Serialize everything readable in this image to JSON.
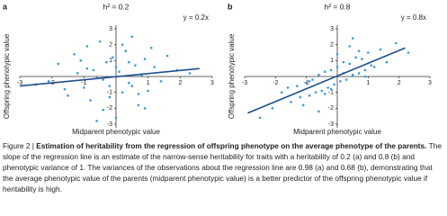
{
  "chart_data": [
    {
      "type": "scatter",
      "panel": "a",
      "title": "h² = 0.2",
      "annotation": "y = 0.2x",
      "x_label": "Midparent phenotypic value",
      "y_label": "Offspring phenotypic value",
      "xlim": [
        -3,
        3
      ],
      "ylim": [
        -3,
        3
      ],
      "xticks": [
        -3,
        -2,
        -1,
        1,
        2,
        3
      ],
      "yticks": [
        3,
        2,
        1,
        -1,
        -2,
        -3
      ],
      "color": "#3a9ad9",
      "x": [
        -2.1,
        -1.8,
        -1.5,
        -1.3,
        -1.2,
        -1.0,
        -0.9,
        -0.8,
        -0.7,
        -0.6,
        -0.5,
        -0.4,
        -0.3,
        -0.2,
        -0.1,
        0.0,
        0.1,
        0.2,
        0.3,
        0.4,
        0.5,
        0.6,
        0.7,
        0.8,
        0.9,
        1.0,
        1.2,
        1.4,
        1.6,
        1.9,
        -1.6,
        -0.9,
        -0.4,
        0.2,
        0.7,
        1.1,
        -0.2,
        0.4,
        -1.1,
        0.9,
        2.3,
        -2.5,
        0.0,
        0.5,
        -0.6
      ],
      "values": [
        -0.3,
        0.8,
        -1.2,
        1.4,
        0.2,
        -0.7,
        1.9,
        -1.5,
        0.4,
        -0.1,
        2.2,
        -2.1,
        0.9,
        -0.6,
        1.2,
        -2.6,
        0.3,
        -1.0,
        1.6,
        -0.4,
        2.5,
        0.7,
        -1.8,
        0.1,
        1.1,
        -0.9,
        0.6,
        -0.3,
        1.3,
        0.4,
        -0.8,
        0.5,
        -0.2,
        2.0,
        -1.1,
        1.8,
        -1.3,
        0.9,
        1.0,
        -2.0,
        0.2,
        -0.5,
        0.6,
        -0.6,
        -2.8
      ],
      "fit": {
        "color": "#1f4e8c",
        "x": [
          -3,
          2.6
        ],
        "values": [
          -0.6,
          0.5
        ]
      }
    },
    {
      "type": "scatter",
      "panel": "b",
      "title": "h² = 0.8",
      "annotation": "y = 0.8x",
      "x_label": "Midparent phenotypic value",
      "y_label": "Offspring phenotypic value",
      "xlim": [
        -3,
        3
      ],
      "ylim": [
        -3,
        3
      ],
      "xticks": [
        -3,
        -2,
        -1,
        1,
        2,
        3
      ],
      "yticks": [
        3,
        2,
        1,
        -1,
        -2,
        -3
      ],
      "color": "#3a9ad9",
      "x": [
        -2.1,
        -1.8,
        -1.5,
        -1.3,
        -1.2,
        -1.0,
        -0.9,
        -0.8,
        -0.7,
        -0.6,
        -0.5,
        -0.4,
        -0.3,
        -0.2,
        -0.1,
        0.0,
        0.1,
        0.2,
        0.3,
        0.4,
        0.5,
        0.6,
        0.7,
        0.8,
        0.9,
        1.0,
        1.2,
        1.4,
        1.6,
        1.9,
        -1.6,
        -0.9,
        -0.4,
        0.2,
        0.7,
        1.1,
        -0.2,
        0.4,
        -1.1,
        0.9,
        2.3,
        -2.5,
        0.0,
        0.5,
        -0.6
      ],
      "values": [
        -2.0,
        -1.0,
        -1.6,
        -0.6,
        -1.3,
        -0.4,
        -1.2,
        -0.2,
        -1.0,
        0.1,
        -0.9,
        0.3,
        -0.7,
        0.4,
        -0.5,
        0.6,
        -0.3,
        0.9,
        -0.2,
        0.8,
        0.1,
        1.2,
        0.2,
        1.1,
        0.4,
        1.5,
        0.6,
        1.7,
        0.9,
        2.1,
        -0.7,
        -0.3,
        -1.1,
        0.2,
        1.6,
        0.7,
        -0.8,
        1.9,
        -1.8,
        0.0,
        1.5,
        -2.6,
        1.4,
        2.4,
        -2.2
      ],
      "fit": {
        "color": "#1f4e8c",
        "x": [
          -2.9,
          2.2
        ],
        "values": [
          -2.3,
          1.8
        ]
      }
    }
  ],
  "caption": {
    "label": "Figure 2 |",
    "title": "Estimation of heritability from the regression of offspring phenotype on the average phenotype of the parents.",
    "text": "The slope of the regression line is an estimate of the narrow-sense heritability for traits with a heritability of 0.2 (a) and 0.8 (b) and phenotypic variance of 1. The variances of the observations about the regression line are 0.98 (a) and 0.68 (b), demonstrating that the average phenotypic value of the parents (midparent phenotypic value) is a better predictor of the offspring phenotypic value if heritability is high."
  }
}
